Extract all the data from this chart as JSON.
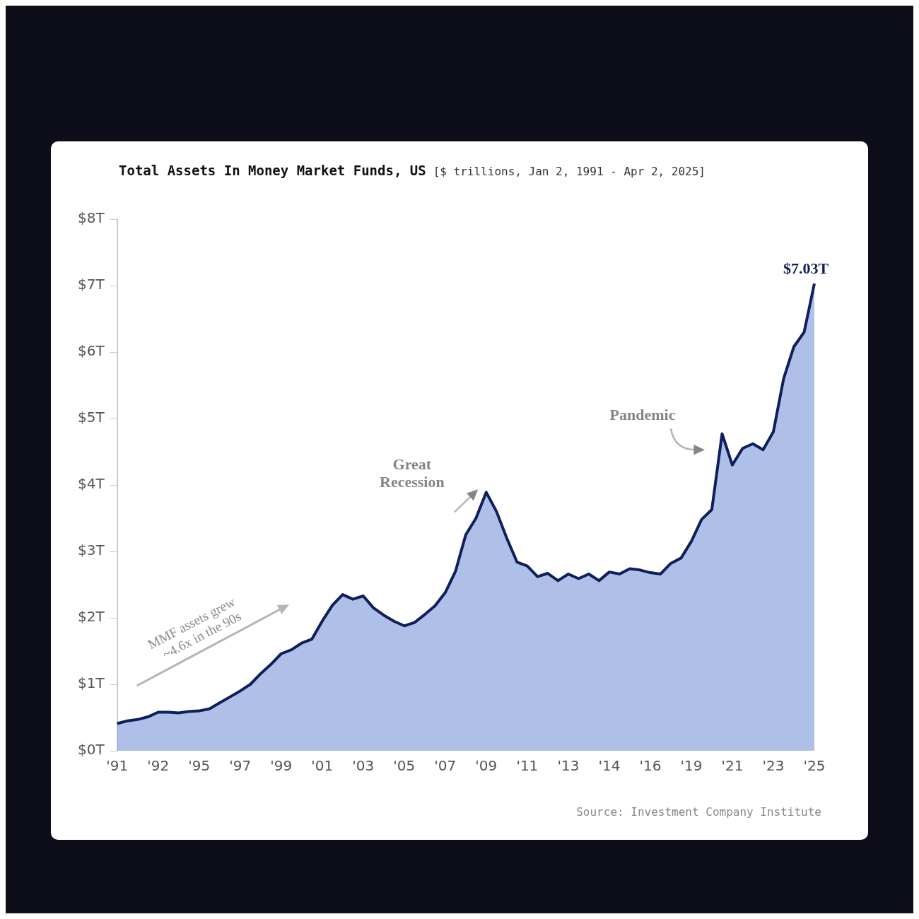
{
  "chart_data": {
    "type": "area",
    "title": "Total Assets In Money Market Funds, US",
    "subtitle": "[$ trillions, Jan 2, 1991 - Apr 2, 2025]",
    "categories": [
      "'91",
      null,
      null,
      null,
      "'92",
      null,
      null,
      null,
      "'95",
      null,
      null,
      null,
      "'97",
      null,
      null,
      null,
      "'99",
      null,
      null,
      null,
      "'01",
      null,
      null,
      null,
      "'03",
      null,
      null,
      null,
      "'05",
      null,
      null,
      null,
      "'07",
      null,
      null,
      null,
      "'09",
      null,
      null,
      null,
      "'11",
      null,
      null,
      null,
      "'13",
      null,
      null,
      null,
      "'14",
      null,
      null,
      null,
      "'16",
      null,
      null,
      null,
      "'19",
      null,
      null,
      null,
      "'21",
      null,
      null,
      null,
      "'23",
      null,
      null,
      null,
      "'25"
    ],
    "series": [
      {
        "color": "#0f1f5e",
        "values": [
          0.41,
          0.45,
          0.47,
          0.51,
          0.58,
          0.58,
          0.57,
          0.59,
          0.6,
          0.63,
          0.72,
          0.81,
          0.9,
          1.0,
          1.16,
          1.3,
          1.46,
          1.52,
          1.62,
          1.68,
          1.95,
          2.19,
          2.35,
          2.28,
          2.33,
          2.15,
          2.04,
          1.95,
          1.88,
          1.93,
          2.05,
          2.18,
          2.38,
          2.7,
          3.25,
          3.5,
          3.89,
          3.6,
          3.2,
          2.84,
          2.78,
          2.62,
          2.67,
          2.56,
          2.66,
          2.59,
          2.66,
          2.56,
          2.69,
          2.66,
          2.74,
          2.72,
          2.68,
          2.66,
          2.82,
          2.9,
          3.15,
          3.48,
          3.63,
          4.77,
          4.3,
          4.55,
          4.62,
          4.53,
          4.8,
          5.6,
          6.08,
          6.3,
          7.03
        ]
      }
    ],
    "ylim": [
      0,
      8
    ],
    "yticks": [
      {
        "value": 0,
        "label": "$0T"
      },
      {
        "value": 1,
        "label": "$1T"
      },
      {
        "value": 2,
        "label": "$2T"
      },
      {
        "value": 3,
        "label": "$3T"
      },
      {
        "value": 4,
        "label": "$4T"
      },
      {
        "value": 5,
        "label": "$5T"
      },
      {
        "value": 6,
        "label": "$6T"
      },
      {
        "value": 7,
        "label": "$7T"
      },
      {
        "value": 8,
        "label": "$8T"
      }
    ],
    "annotations": [
      "MMF assets grew ~4.6x in the 90s",
      "Pandemic",
      {
        "text": "Great Recession",
        "x": "'09",
        "y": 3.89
      },
      {
        "text": "$7.03T",
        "x": "'25",
        "y": 7.03
      },
      "Source: Investment Company Institute"
    ]
  }
}
